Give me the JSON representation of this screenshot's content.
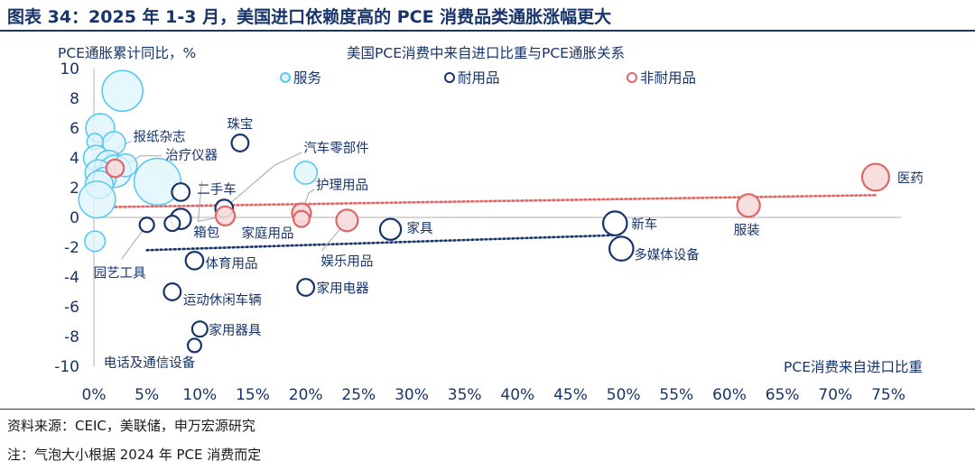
{
  "header": {
    "title": "图表 34：2025 年 1-3 月，美国进口依赖度高的 PCE 消费品类通胀涨幅更大"
  },
  "footer": {
    "source": "资料来源：CEIC，美联储，申万宏源研究",
    "note": "注：气泡大小根据 2024 年 PCE 消费而定"
  },
  "colors": {
    "services": "#5bc8f0",
    "durables": "#17346b",
    "nondurables": "#e06666",
    "header": "#17346b"
  },
  "chart_data": {
    "type": "scatter",
    "title": "美国PCE消费中来自进口比重与PCE通胀关系",
    "xlabel": "PCE消费来自进口比重",
    "ylabel": "PCE通胀累计同比，%",
    "xlim": [
      0,
      75
    ],
    "ylim": [
      -10,
      10
    ],
    "x_ticks": [
      "0%",
      "5%",
      "10%",
      "15%",
      "20%",
      "25%",
      "30%",
      "35%",
      "40%",
      "45%",
      "50%",
      "55%",
      "60%",
      "65%",
      "70%",
      "75%"
    ],
    "y_ticks": [
      "10",
      "8",
      "6",
      "4",
      "2",
      "0",
      "-2",
      "-4",
      "-6",
      "-8",
      "-10"
    ],
    "x_unit": "%",
    "bubble_size": "2024 年 PCE 消费",
    "legend_position": "top",
    "grid": false,
    "series": [
      {
        "name": "服务",
        "color": "#5bc8f0",
        "filled": true,
        "points": [
          {
            "x": 2.7,
            "y": 8.5,
            "s": 3.2,
            "label": ""
          },
          {
            "x": 0.6,
            "y": 6.0,
            "s": 1.6,
            "label": ""
          },
          {
            "x": 1.9,
            "y": 5.0,
            "s": 1.0,
            "label": ""
          },
          {
            "x": 0.1,
            "y": 5.1,
            "s": 0.5,
            "label": ""
          },
          {
            "x": 0.2,
            "y": 4.0,
            "s": 1.2,
            "label": ""
          },
          {
            "x": 1.4,
            "y": 3.6,
            "s": 1.4,
            "label": ""
          },
          {
            "x": 2.0,
            "y": 3.1,
            "s": 2.0,
            "label": ""
          },
          {
            "x": 0.4,
            "y": 3.0,
            "s": 1.3,
            "label": ""
          },
          {
            "x": 3.0,
            "y": 3.5,
            "s": 1.0,
            "label": ""
          },
          {
            "x": 1.0,
            "y": 2.6,
            "s": 1.0,
            "label": ""
          },
          {
            "x": 0.5,
            "y": 2.2,
            "s": 1.5,
            "label": ""
          },
          {
            "x": 0.3,
            "y": 1.2,
            "s": 2.6,
            "label": ""
          },
          {
            "x": 6.0,
            "y": 2.4,
            "s": 4.2,
            "label": ""
          },
          {
            "x": 20.0,
            "y": 3.0,
            "s": 1.0,
            "label": ""
          },
          {
            "x": 0.1,
            "y": -1.6,
            "s": 0.8,
            "label": ""
          }
        ]
      },
      {
        "name": "耐用品",
        "color": "#17346b",
        "filled": false,
        "points": [
          {
            "x": 13.8,
            "y": 5.0,
            "s": 0.55,
            "label": "珠宝"
          },
          {
            "x": 8.2,
            "y": 1.7,
            "s": 0.6,
            "label": "二手车"
          },
          {
            "x": 12.3,
            "y": 0.6,
            "s": 0.6,
            "label": "汽车零部件"
          },
          {
            "x": 8.2,
            "y": -0.1,
            "s": 0.8,
            "label": "箱包"
          },
          {
            "x": 7.4,
            "y": -0.4,
            "s": 0.45,
            "label": ""
          },
          {
            "x": 5.0,
            "y": -0.5,
            "s": 0.4,
            "label": "园艺工具"
          },
          {
            "x": 28.0,
            "y": -0.8,
            "s": 0.85,
            "label": "家具"
          },
          {
            "x": 49.2,
            "y": -0.4,
            "s": 1.1,
            "label": "新车"
          },
          {
            "x": 49.8,
            "y": -2.1,
            "s": 1.1,
            "label": "多媒体设备"
          },
          {
            "x": 9.5,
            "y": -2.9,
            "s": 0.6,
            "label": "体育用品"
          },
          {
            "x": 20.0,
            "y": -4.7,
            "s": 0.55,
            "label": "家用电器"
          },
          {
            "x": 7.4,
            "y": -5.0,
            "s": 0.55,
            "label": "运动休闲车辆"
          },
          {
            "x": 10.0,
            "y": -7.5,
            "s": 0.45,
            "label": "家用器具"
          },
          {
            "x": 9.5,
            "y": -8.6,
            "s": 0.35,
            "label": "电话及通信设备"
          }
        ]
      },
      {
        "name": "非耐用品",
        "color": "#e06666",
        "filled": false,
        "points": [
          {
            "x": 2.0,
            "y": 3.3,
            "s": 0.6,
            "label": "报纸杂志"
          },
          {
            "x": 12.4,
            "y": 0.1,
            "s": 0.7,
            "label": "家庭用品"
          },
          {
            "x": 19.6,
            "y": 0.3,
            "s": 0.7,
            "label": "护理用品"
          },
          {
            "x": 19.6,
            "y": -0.1,
            "s": 0.5,
            "label": ""
          },
          {
            "x": 23.9,
            "y": -0.2,
            "s": 0.9,
            "label": "娱乐用品"
          },
          {
            "x": 61.8,
            "y": 0.8,
            "s": 1.0,
            "label": "服装"
          },
          {
            "x": 73.8,
            "y": 2.7,
            "s": 1.4,
            "label": "医药"
          }
        ]
      }
    ],
    "trendlines": [
      {
        "series": "非耐用品",
        "color": "#e06666",
        "x": [
          2,
          74
        ],
        "y": [
          0.7,
          1.5
        ]
      },
      {
        "series": "耐用品",
        "color": "#17346b",
        "x": [
          5,
          49
        ],
        "y": [
          -2.2,
          -1.2
        ]
      }
    ]
  }
}
